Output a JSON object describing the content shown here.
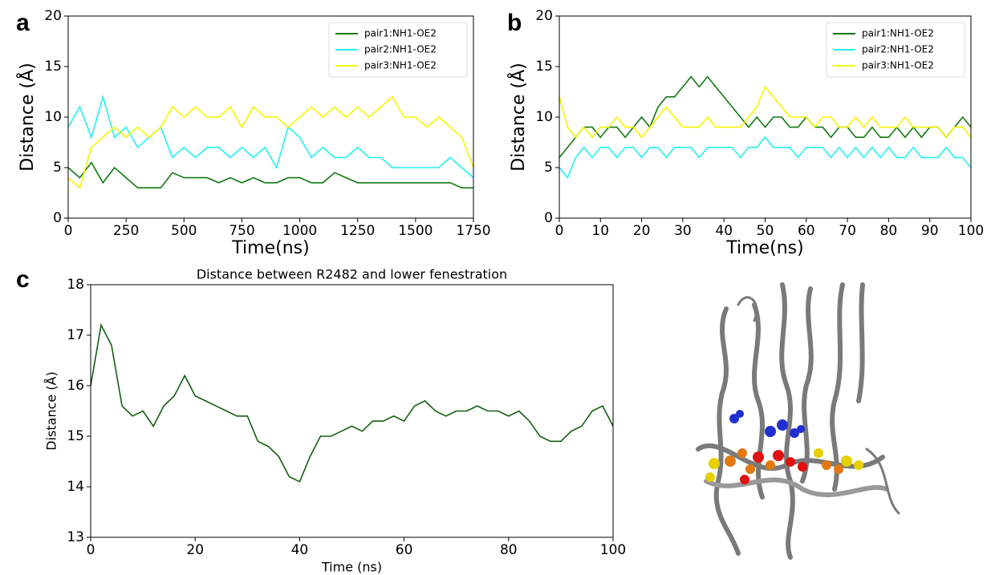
{
  "chart_data": [
    {
      "type": "line",
      "panel_label": "a",
      "x_label": "Time(ns)",
      "y_label": "Distance (Å)",
      "x": [
        0,
        50,
        100,
        150,
        200,
        250,
        300,
        350,
        400,
        450,
        500,
        550,
        600,
        650,
        700,
        750,
        800,
        850,
        900,
        950,
        1000,
        1050,
        1100,
        1150,
        1200,
        1250,
        1300,
        1350,
        1400,
        1450,
        1500,
        1550,
        1600,
        1650,
        1700,
        1750
      ],
      "series": [
        {
          "name": "pair1:NH1-OE2",
          "color": "#117a11",
          "values": [
            5,
            4,
            5.5,
            3.5,
            5,
            4,
            3,
            3,
            3,
            4.5,
            4,
            4,
            4,
            3.5,
            4,
            3.5,
            4,
            3.5,
            3.5,
            4,
            4,
            3.5,
            3.5,
            4.5,
            4,
            3.5,
            3.5,
            3.5,
            3.5,
            3.5,
            3.5,
            3.5,
            3.5,
            3.5,
            3,
            3
          ]
        },
        {
          "name": "pair2:NH1-OE2",
          "color": "#22f0f0",
          "values": [
            9,
            11,
            8,
            12,
            8,
            9,
            7,
            8,
            9,
            6,
            7,
            6,
            7,
            7,
            6,
            7,
            6,
            7,
            5,
            9,
            8,
            6,
            7,
            6,
            6,
            7,
            6,
            6,
            5,
            5,
            5,
            5,
            5,
            6,
            5,
            4
          ]
        },
        {
          "name": "pair3:NH1-OE2",
          "color": "#f5f500",
          "values": [
            4,
            3,
            7,
            8,
            9,
            8,
            9,
            8,
            9,
            11,
            10,
            11,
            10,
            10,
            11,
            9,
            11,
            10,
            10,
            9,
            10,
            11,
            10,
            11,
            10,
            11,
            10,
            11,
            12,
            10,
            10,
            9,
            10,
            9,
            8,
            5
          ]
        }
      ],
      "xlim": [
        0,
        1750
      ],
      "xticks": [
        0,
        250,
        500,
        750,
        1000,
        1250,
        1500,
        1750
      ],
      "ylim": [
        0,
        20
      ],
      "yticks": [
        0,
        5,
        10,
        15,
        20
      ],
      "legend": "upper right"
    },
    {
      "type": "line",
      "panel_label": "b",
      "x_label": "Time(ns)",
      "y_label": "Distance (Å)",
      "x": [
        0,
        2,
        4,
        6,
        8,
        10,
        12,
        14,
        16,
        18,
        20,
        22,
        24,
        26,
        28,
        30,
        32,
        34,
        36,
        38,
        40,
        42,
        44,
        46,
        48,
        50,
        52,
        54,
        56,
        58,
        60,
        62,
        64,
        66,
        68,
        70,
        72,
        74,
        76,
        78,
        80,
        82,
        84,
        86,
        88,
        90,
        92,
        94,
        96,
        98,
        100
      ],
      "series": [
        {
          "name": "pair1:NH1-OE2",
          "color": "#117a11",
          "values": [
            6,
            7,
            8,
            9,
            9,
            8,
            9,
            9,
            8,
            9,
            10,
            9,
            11,
            12,
            12,
            13,
            14,
            13,
            14,
            13,
            12,
            11,
            10,
            9,
            10,
            9,
            10,
            10,
            9,
            9,
            10,
            9,
            9,
            8,
            9,
            9,
            8,
            8,
            9,
            8,
            8,
            9,
            8,
            9,
            8,
            9,
            9,
            8,
            9,
            10,
            9
          ]
        },
        {
          "name": "pair2:NH1-OE2",
          "color": "#22f0f0",
          "values": [
            5,
            4,
            6,
            7,
            6,
            7,
            7,
            6,
            7,
            7,
            6,
            7,
            7,
            6,
            7,
            7,
            7,
            6,
            7,
            7,
            7,
            7,
            6,
            7,
            7,
            8,
            7,
            7,
            7,
            6,
            7,
            7,
            7,
            6,
            7,
            6,
            7,
            6,
            7,
            6,
            7,
            6,
            6,
            7,
            6,
            6,
            6,
            7,
            6,
            6,
            5
          ]
        },
        {
          "name": "pair3:NH1-OE2",
          "color": "#f5f500",
          "values": [
            12,
            9,
            8,
            9,
            8,
            9,
            9,
            10,
            9,
            9,
            8,
            9,
            10,
            11,
            10,
            9,
            9,
            9,
            10,
            9,
            9,
            9,
            9,
            10,
            11,
            13,
            12,
            11,
            10,
            10,
            10,
            9,
            10,
            10,
            9,
            9,
            10,
            9,
            10,
            9,
            9,
            9,
            10,
            9,
            9,
            9,
            9,
            8,
            9,
            9,
            8
          ]
        }
      ],
      "xlim": [
        0,
        100
      ],
      "xticks": [
        0,
        10,
        20,
        30,
        40,
        50,
        60,
        70,
        80,
        90,
        100
      ],
      "ylim": [
        0,
        20
      ],
      "yticks": [
        0,
        5,
        10,
        15,
        20
      ],
      "legend": "upper right"
    },
    {
      "type": "line",
      "panel_label": "c",
      "title": "Distance between R2482 and lower fenestration",
      "x_label": "Time (ns)",
      "y_label": "Distance (Å)",
      "x": [
        0,
        2,
        4,
        6,
        8,
        10,
        12,
        14,
        16,
        18,
        20,
        22,
        24,
        26,
        28,
        30,
        32,
        34,
        36,
        38,
        40,
        42,
        44,
        46,
        48,
        50,
        52,
        54,
        56,
        58,
        60,
        62,
        64,
        66,
        68,
        70,
        72,
        74,
        76,
        78,
        80,
        82,
        84,
        86,
        88,
        90,
        92,
        94,
        96,
        98,
        100
      ],
      "series": [
        {
          "color": "#145e14",
          "values": [
            16,
            17.2,
            16.8,
            15.6,
            15.4,
            15.5,
            15.2,
            15.6,
            15.8,
            16.2,
            15.8,
            15.7,
            15.6,
            15.5,
            15.4,
            15.4,
            14.9,
            14.8,
            14.6,
            14.2,
            14.1,
            14.6,
            15,
            15,
            15.1,
            15.2,
            15.1,
            15.3,
            15.3,
            15.4,
            15.3,
            15.6,
            15.7,
            15.5,
            15.4,
            15.5,
            15.5,
            15.6,
            15.5,
            15.5,
            15.4,
            15.5,
            15.3,
            15,
            14.9,
            14.9,
            15.1,
            15.2,
            15.5,
            15.6,
            15.2
          ]
        }
      ],
      "xlim": [
        0,
        100
      ],
      "xticks": [
        0,
        20,
        40,
        60,
        80,
        100
      ],
      "ylim": [
        13,
        18
      ],
      "yticks": [
        13,
        14,
        15,
        16,
        17,
        18
      ]
    }
  ]
}
